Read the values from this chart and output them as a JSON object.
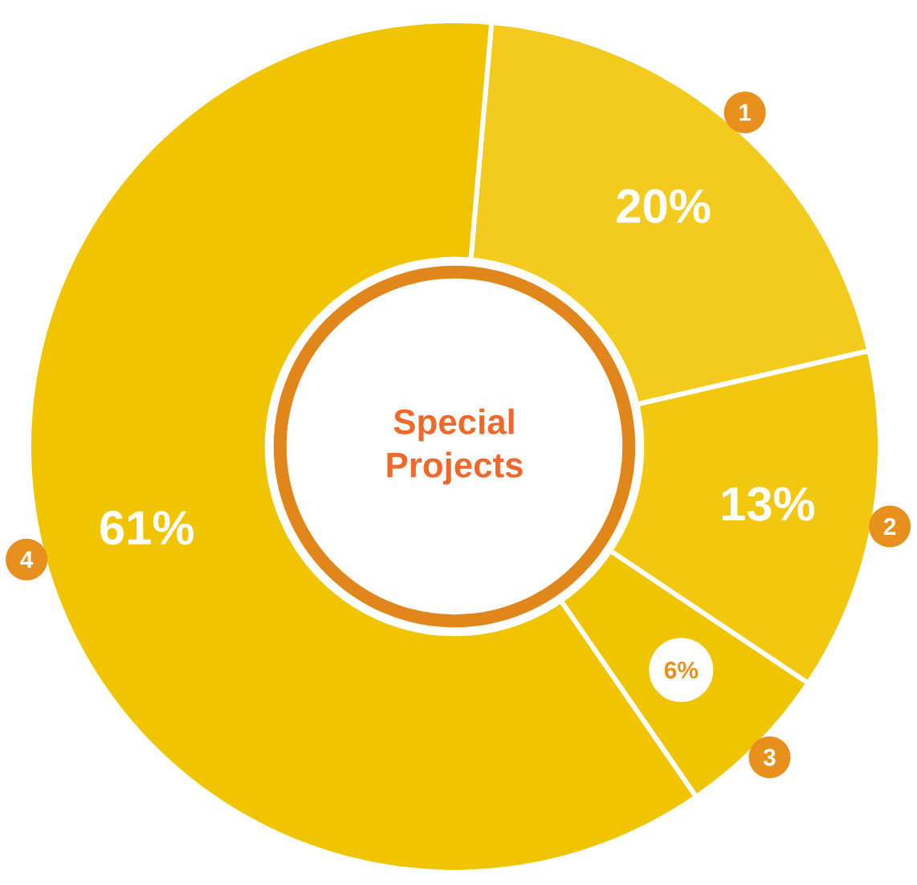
{
  "chart_data": {
    "type": "donut",
    "title": "Special Projects",
    "categories": [
      "1",
      "2",
      "3",
      "4"
    ],
    "values": [
      20,
      13,
      6,
      61
    ],
    "value_labels": [
      "20%",
      "13%",
      "6%",
      "61%"
    ],
    "colors": [
      "#f3ca1e",
      "#f1c80f",
      "#efc400",
      "#f0c500"
    ]
  }
}
